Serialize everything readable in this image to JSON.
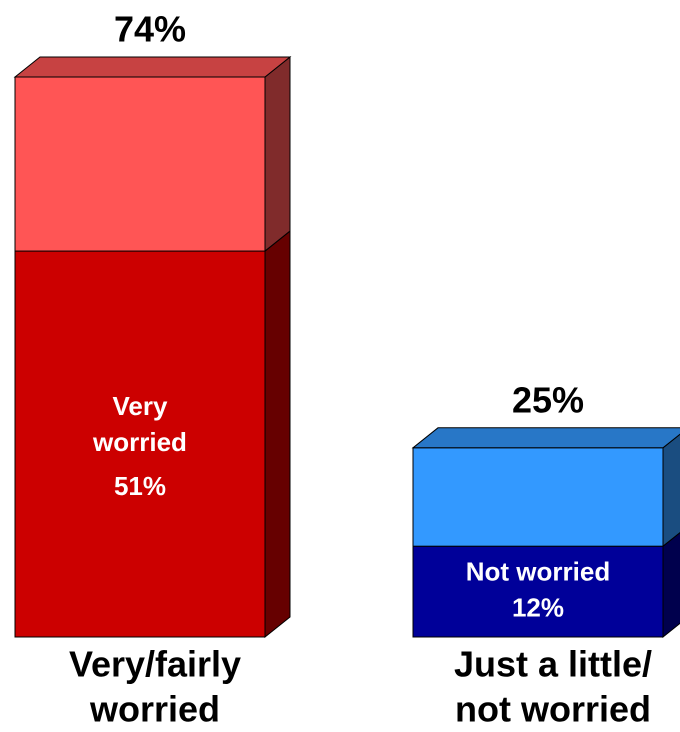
{
  "chart_data": {
    "type": "stacked_bar_3d",
    "categories": [
      [
        "Very/fairly",
        "worried"
      ],
      [
        "Just a little/",
        "not worried"
      ]
    ],
    "series": [
      {
        "values": [
          51,
          12
        ],
        "value_labels": [
          "51%",
          "12%"
        ],
        "segment_labels": [
          [
            "Very",
            "worried"
          ],
          [
            "Not worried"
          ]
        ],
        "colors": [
          "#cc0000",
          "#000099"
        ]
      },
      {
        "values": [
          23,
          13
        ],
        "colors": [
          "#ff5555",
          "#3399ff"
        ]
      }
    ],
    "totals": [
      74,
      25
    ],
    "total_labels": [
      "74%",
      "25%"
    ]
  }
}
